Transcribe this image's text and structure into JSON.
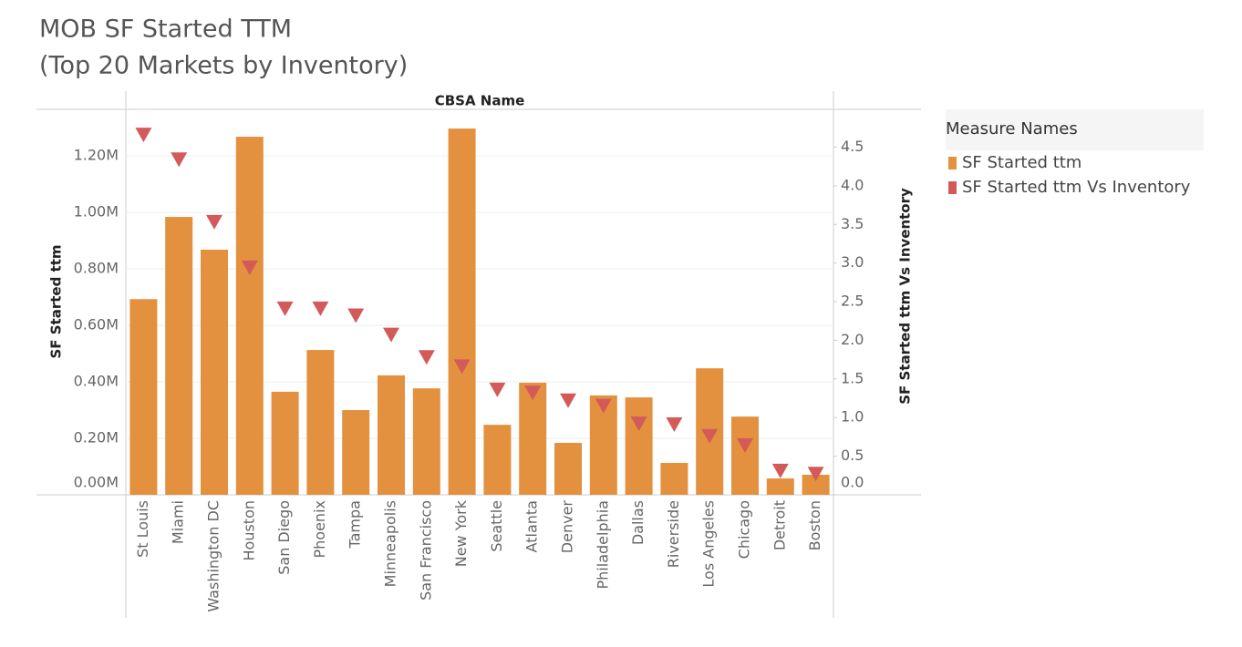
{
  "chart_data": {
    "type": "bar",
    "title": [
      "MOB SF Started TTM",
      "(Top 20 Markets by Inventory)"
    ],
    "xlabel": "CBSA Name",
    "ylabel": "SF Started ttm",
    "y2label": "SF Started ttm Vs Inventory",
    "legend_title": "Measure Names",
    "legend": "right",
    "categories": [
      "St Louis",
      "Miami",
      "Washington DC",
      "Houston",
      "San Diego",
      "Phoenix",
      "Tampa",
      "Minneapolis",
      "San Francisco",
      "New York",
      "Seattle",
      "Atlanta",
      "Denver",
      "Philadelphia",
      "Dallas",
      "Riverside",
      "Los Angeles",
      "Chicago",
      "Detroit",
      "Boston"
    ],
    "series": [
      {
        "name": "SF Started ttm",
        "color": "#e3913f",
        "type": "bar",
        "values": [
          693000,
          984000,
          868000,
          1268000,
          365000,
          513000,
          300000,
          423000,
          377000,
          1297000,
          248000,
          397000,
          184000,
          352000,
          345000,
          113000,
          448000,
          277000,
          58000,
          71000
        ]
      },
      {
        "name": "SF Started ttm Vs Inventory",
        "color": "#d45a5a",
        "type": "marker",
        "axis": "y2",
        "values": [
          4.67,
          4.35,
          3.54,
          2.95,
          2.42,
          2.42,
          2.33,
          2.08,
          1.79,
          1.67,
          1.37,
          1.33,
          1.23,
          1.16,
          0.93,
          0.92,
          0.77,
          0.65,
          0.32,
          0.28
        ]
      }
    ],
    "ylim": [
      0,
      1365000
    ],
    "yticks": [
      {
        "value": 0,
        "label": "0.00M"
      },
      {
        "value": 200000,
        "label": "0.20M"
      },
      {
        "value": 400000,
        "label": "0.40M"
      },
      {
        "value": 600000,
        "label": "0.60M"
      },
      {
        "value": 800000,
        "label": "0.80M"
      },
      {
        "value": 1000000,
        "label": "1.00M"
      },
      {
        "value": 1200000,
        "label": "1.20M"
      }
    ],
    "y2lim": [
      0,
      4.99
    ],
    "y2ticks": [
      {
        "value": 0,
        "label": "0.0"
      },
      0.5,
      {
        "value": 1,
        "label": "1.0"
      },
      1.5,
      {
        "value": 2,
        "label": "2.0"
      },
      2.5,
      {
        "value": 3,
        "label": "3.0"
      },
      3.5,
      {
        "value": 4,
        "label": "4.0"
      },
      4.5
    ],
    "grid": true
  }
}
